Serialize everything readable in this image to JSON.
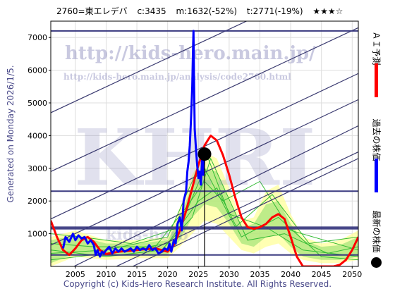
{
  "header": {
    "code_name": "2760=東エレデバ",
    "current": "c:3435",
    "max": "m:1632(-52%)",
    "target": "t:2771(-19%)",
    "stars": "★★★☆"
  },
  "side_note": "Generated on Monday 2026/1/5.",
  "copyright": "Copyright (c) Kids-Hero Research Institute. All Rights Reserved.",
  "watermarks": {
    "url_main": "http://kids-hero.main.jp/",
    "url_analysis": "http://kids-hero.main.jp/analysis/code2760.html",
    "big_text": "KHRI",
    "bottom_text": "kids-hero"
  },
  "legend": [
    {
      "label": "ＡＩ予測",
      "color": "#ff0000"
    },
    {
      "label": "過去の株価",
      "color": "#0000ff"
    },
    {
      "label": "最新の株価",
      "color": "#000000"
    }
  ],
  "chart_data": {
    "type": "line",
    "xlim": [
      2001,
      2051
    ],
    "ylim": [
      0,
      7500
    ],
    "x_ticks": [
      2005,
      2010,
      2015,
      2020,
      2025,
      2030,
      2035,
      2040,
      2045,
      2050
    ],
    "y_ticks": [
      1000,
      2000,
      3000,
      4000,
      5000,
      6000,
      7000
    ],
    "grid": true,
    "legend_position": "right",
    "horizontal_levels": [
      7200,
      2300,
      1200,
      1150,
      350
    ],
    "trend_lines": [
      {
        "from": [
          2001,
          4700
        ],
        "to": [
          2051,
          9100
        ]
      },
      {
        "from": [
          2001,
          2900
        ],
        "to": [
          2051,
          7300
        ]
      },
      {
        "from": [
          2001,
          1450
        ],
        "to": [
          2051,
          5900
        ]
      },
      {
        "from": [
          2001,
          650
        ],
        "to": [
          2051,
          5100
        ]
      },
      {
        "from": [
          2001,
          -350
        ],
        "to": [
          2051,
          4300
        ]
      },
      {
        "from": [
          2001,
          -950
        ],
        "to": [
          2051,
          3500
        ]
      },
      {
        "from": [
          2001,
          -1200
        ],
        "to": [
          2051,
          3300
        ]
      }
    ],
    "series": [
      {
        "name": "ＡＩ予測",
        "color": "#ff0000",
        "x": [
          2001.0,
          2002.0,
          2003.0,
          2004.0,
          2005.0,
          2006.0,
          2007.0,
          2008.0,
          2009.0,
          2010.0,
          2012.0,
          2014.0,
          2016.0,
          2018.0,
          2020.0,
          2021.0,
          2022.0,
          2023.0,
          2024.0,
          2025.0,
          2026.0,
          2027.0,
          2028.0,
          2029.0,
          2030.0,
          2031.0,
          2032.0,
          2033.0,
          2034.0,
          2035.0,
          2036.0,
          2037.0,
          2038.0,
          2039.0,
          2040.0,
          2041.0,
          2042.0,
          2043.0,
          2044.0,
          2045.0,
          2046.0,
          2047.0,
          2048.0,
          2049.0,
          2050.0,
          2051.0
        ],
        "y": [
          1400,
          900,
          500,
          350,
          550,
          800,
          900,
          750,
          500,
          380,
          450,
          480,
          520,
          550,
          450,
          650,
          1100,
          1700,
          2400,
          3100,
          3700,
          4000,
          3850,
          3400,
          2800,
          2100,
          1500,
          1200,
          1150,
          1200,
          1300,
          1500,
          1600,
          1450,
          900,
          300,
          0,
          0,
          0,
          0,
          0,
          0,
          50,
          200,
          500,
          900
        ]
      },
      {
        "name": "過去の株価",
        "color": "#0000ff",
        "x": [
          2003.0,
          2003.4,
          2004.0,
          2004.6,
          2005.0,
          2005.5,
          2006.0,
          2006.5,
          2007.0,
          2007.5,
          2008.0,
          2008.3,
          2008.6,
          2009.0,
          2009.3,
          2009.6,
          2010.0,
          2010.5,
          2011.0,
          2011.5,
          2012.0,
          2012.5,
          2013.0,
          2013.5,
          2014.0,
          2014.5,
          2015.0,
          2015.5,
          2016.0,
          2016.5,
          2017.0,
          2017.5,
          2018.0,
          2018.5,
          2019.0,
          2019.5,
          2020.0,
          2020.3,
          2020.6,
          2021.0,
          2021.3,
          2021.6,
          2022.0,
          2022.3,
          2022.6,
          2023.0,
          2023.2,
          2023.4,
          2023.6,
          2023.8,
          2024.0,
          2024.1,
          2024.2,
          2024.3,
          2024.4,
          2024.6,
          2024.8,
          2025.0,
          2025.2,
          2025.4,
          2025.6,
          2025.8,
          2026.0
        ],
        "y": [
          550,
          900,
          750,
          1000,
          800,
          950,
          850,
          900,
          700,
          800,
          650,
          350,
          500,
          300,
          450,
          400,
          500,
          600,
          400,
          550,
          450,
          550,
          450,
          500,
          550,
          450,
          600,
          500,
          550,
          500,
          650,
          500,
          550,
          400,
          450,
          550,
          500,
          700,
          450,
          800,
          700,
          1300,
          1500,
          1100,
          2000,
          2300,
          2900,
          3200,
          3700,
          4500,
          5500,
          6400,
          7200,
          5500,
          4200,
          3600,
          3100,
          2700,
          2900,
          2500,
          3300,
          2800,
          3435
        ]
      }
    ],
    "current_marker": {
      "x": 2026.0,
      "y": 3435
    }
  }
}
